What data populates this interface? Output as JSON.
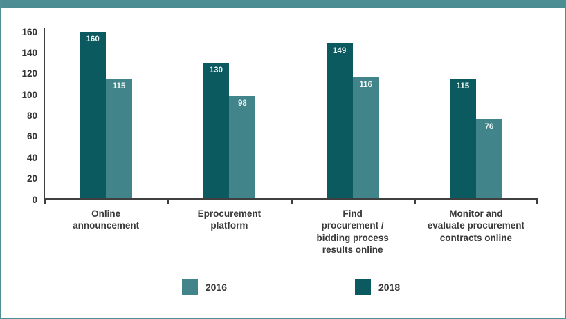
{
  "chart_data": {
    "type": "bar",
    "title": "",
    "xlabel": "",
    "ylabel": "",
    "categories": [
      "Online announcement",
      "Eprocurement platform",
      "Find procurement / bidding process results online",
      "Monitor and evaluate procurement contracts online"
    ],
    "category_lines": [
      [
        "Online",
        "announcement"
      ],
      [
        "Eprocurement",
        "platform"
      ],
      [
        "Find",
        "procurement /",
        "bidding process",
        "results online"
      ],
      [
        "Monitor and",
        "evaluate procurement",
        "contracts online"
      ]
    ],
    "series": [
      {
        "name": "2018",
        "color": "#0b5a60",
        "values": [
          160,
          130,
          149,
          115
        ]
      },
      {
        "name": "2016",
        "color": "#41858b",
        "values": [
          115,
          98,
          116,
          76
        ]
      }
    ],
    "legend": [
      {
        "label": "2016",
        "color": "#41858b"
      },
      {
        "label": "2018",
        "color": "#0b5a60"
      }
    ],
    "legend_position": "bottom",
    "ylim": [
      0,
      160
    ],
    "yticks": [
      0,
      20,
      40,
      60,
      80,
      100,
      120,
      140,
      160
    ],
    "grid": false,
    "bar_value_labels_shown": true
  },
  "frame": {
    "accent_color": "#4c8d93",
    "axis_color": "#3f3f3f"
  }
}
